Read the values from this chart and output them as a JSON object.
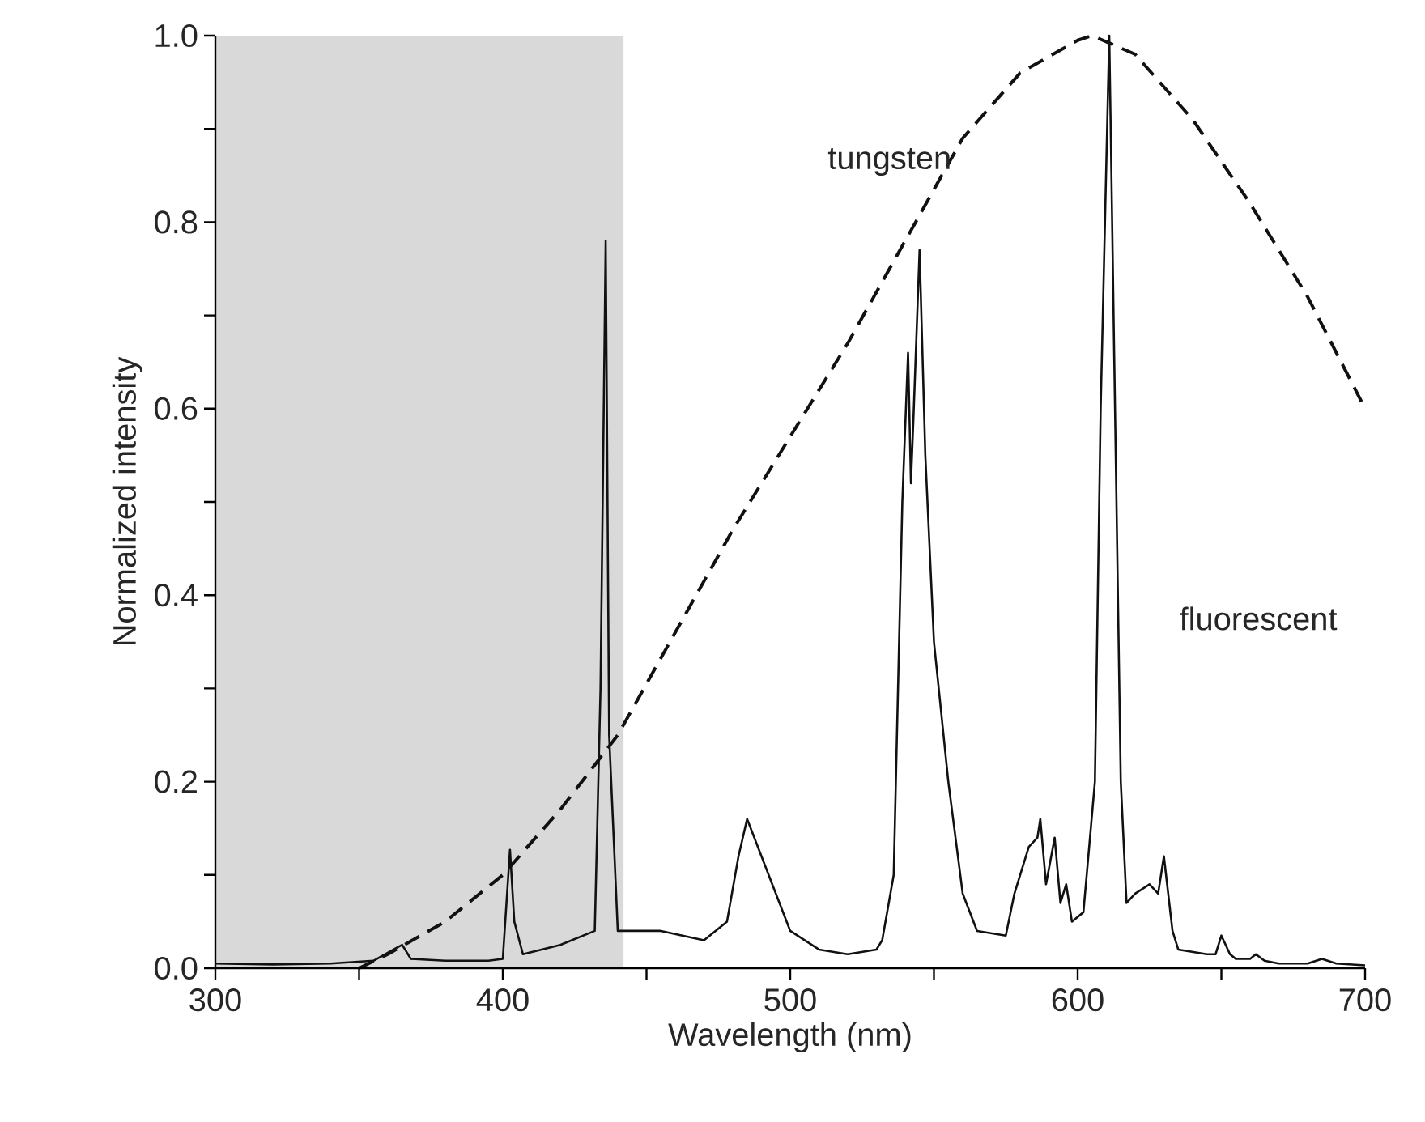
{
  "chart_data": {
    "type": "line",
    "xlabel": "Wavelength (nm)",
    "ylabel": "Normalized intensity",
    "xlim": [
      300,
      700
    ],
    "ylim": [
      0,
      1
    ],
    "xticks": [
      300,
      {
        "value": 350,
        "label": null
      },
      400,
      {
        "value": 450,
        "label": null
      },
      500,
      {
        "value": 550,
        "label": null
      },
      600,
      {
        "value": 650,
        "label": null
      },
      700
    ],
    "yticks": [
      {
        "value": 0,
        "label": "0.0"
      },
      {
        "value": 0.1,
        "label": null
      },
      {
        "value": 0.2,
        "label": "0.2"
      },
      {
        "value": 0.3,
        "label": null
      },
      {
        "value": 0.4,
        "label": "0.4"
      },
      {
        "value": 0.5,
        "label": null
      },
      {
        "value": 0.6,
        "label": "0.6"
      },
      {
        "value": 0.7,
        "label": null
      },
      {
        "value": 0.8,
        "label": "0.8"
      },
      {
        "value": 0.9,
        "label": null
      },
      {
        "value": 1.0,
        "label": "1.0"
      }
    ],
    "marker": "none",
    "bands": [
      {
        "axis": "x",
        "from": 300,
        "to": 442,
        "color": "#d9d9d9"
      }
    ],
    "series": [
      {
        "name": "fluorescent",
        "color": "#111111",
        "line_style": "solid",
        "x": [
          300,
          320,
          340,
          355,
          362,
          365,
          368,
          380,
          395,
          400,
          402.5,
          404,
          407,
          420,
          432,
          434,
          435.8,
          437,
          440,
          455,
          470,
          478,
          482,
          485,
          490,
          500,
          510,
          520,
          530,
          532,
          536,
          539,
          541,
          542,
          543,
          545,
          547,
          550,
          555,
          560,
          565,
          575,
          578,
          583,
          586,
          587,
          589,
          592,
          594,
          596,
          598,
          602,
          606,
          608,
          611,
          613,
          615,
          617,
          620,
          625,
          628,
          630,
          633,
          635,
          645,
          648,
          650,
          653,
          655,
          660,
          662,
          665,
          670,
          680,
          685,
          690,
          700
        ],
        "values": [
          0.005,
          0.004,
          0.005,
          0.008,
          0.02,
          0.025,
          0.01,
          0.008,
          0.008,
          0.01,
          0.127,
          0.05,
          0.015,
          0.025,
          0.04,
          0.3,
          0.78,
          0.25,
          0.04,
          0.04,
          0.03,
          0.05,
          0.12,
          0.16,
          0.12,
          0.04,
          0.02,
          0.015,
          0.02,
          0.03,
          0.1,
          0.5,
          0.66,
          0.52,
          0.6,
          0.77,
          0.55,
          0.35,
          0.2,
          0.08,
          0.04,
          0.035,
          0.08,
          0.13,
          0.14,
          0.16,
          0.09,
          0.14,
          0.07,
          0.09,
          0.05,
          0.06,
          0.2,
          0.6,
          1.0,
          0.6,
          0.2,
          0.07,
          0.08,
          0.09,
          0.08,
          0.12,
          0.04,
          0.02,
          0.015,
          0.015,
          0.035,
          0.015,
          0.01,
          0.01,
          0.015,
          0.008,
          0.005,
          0.005,
          0.01,
          0.005,
          0.003
        ]
      },
      {
        "name": "tungsten",
        "color": "#111111",
        "line_style": "dashed",
        "x": [
          350,
          360,
          380,
          400,
          420,
          440,
          460,
          480,
          500,
          520,
          540,
          560,
          580,
          600,
          605,
          620,
          640,
          660,
          680,
          700
        ],
        "values": [
          0.0,
          0.015,
          0.05,
          0.1,
          0.17,
          0.25,
          0.36,
          0.47,
          0.57,
          0.67,
          0.78,
          0.89,
          0.96,
          0.995,
          1.0,
          0.98,
          0.91,
          0.82,
          0.72,
          0.6
        ]
      }
    ]
  }
}
